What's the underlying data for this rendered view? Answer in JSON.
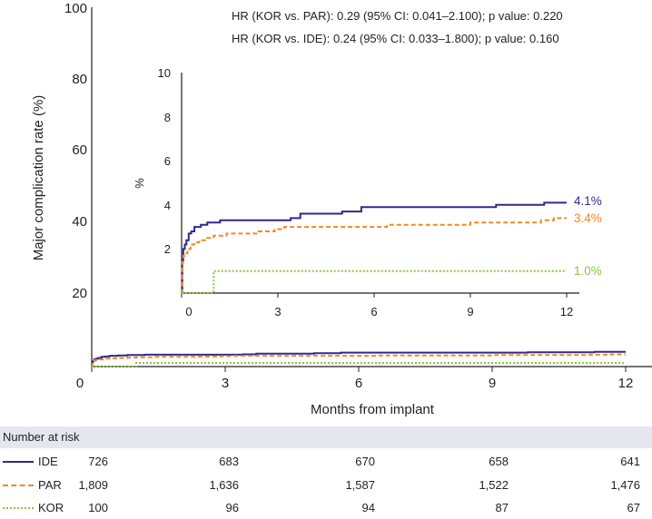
{
  "chart_data": {
    "type": "line",
    "subtype": "kaplan-meier step curves with inset",
    "xlabel": "Months from implant",
    "ylabel": "Major complication rate (%)",
    "x_ticks": [
      "0",
      "3",
      "6",
      "9",
      "12"
    ],
    "y_ticks": [
      "20",
      "40",
      "60",
      "80",
      "100"
    ],
    "xlim": [
      0,
      12
    ],
    "ylim": [
      0,
      100
    ],
    "annotations": [
      "HR (KOR vs. PAR): 0.29 (95% CI: 0.041–2.100); p value: 0.220",
      "HR (KOR vs. IDE): 0.24 (95% CI: 0.033–1.800); p value: 0.160"
    ],
    "series": [
      {
        "name": "IDE",
        "color": "#2e2a8f",
        "style": "solid",
        "end_label": "4.1%",
        "points": [
          [
            0,
            0
          ],
          [
            0.02,
            1.5
          ],
          [
            0.05,
            2.0
          ],
          [
            0.1,
            2.2
          ],
          [
            0.15,
            2.4
          ],
          [
            0.22,
            2.7
          ],
          [
            0.3,
            2.8
          ],
          [
            0.4,
            3.0
          ],
          [
            0.6,
            3.1
          ],
          [
            0.8,
            3.2
          ],
          [
            1.2,
            3.3
          ],
          [
            3.0,
            3.3
          ],
          [
            3.4,
            3.4
          ],
          [
            3.7,
            3.6
          ],
          [
            5.0,
            3.7
          ],
          [
            5.6,
            3.9
          ],
          [
            9.8,
            4.0
          ],
          [
            11.3,
            4.1
          ],
          [
            12,
            4.1
          ]
        ]
      },
      {
        "name": "PAR",
        "color": "#f08a24",
        "style": "dashed",
        "end_label": "3.4%",
        "points": [
          [
            0,
            0
          ],
          [
            0.02,
            1.4
          ],
          [
            0.05,
            1.7
          ],
          [
            0.1,
            1.8
          ],
          [
            0.18,
            2.0
          ],
          [
            0.28,
            2.2
          ],
          [
            0.4,
            2.3
          ],
          [
            0.55,
            2.4
          ],
          [
            0.8,
            2.5
          ],
          [
            1.0,
            2.6
          ],
          [
            1.4,
            2.7
          ],
          [
            2.4,
            2.8
          ],
          [
            2.9,
            2.9
          ],
          [
            3.2,
            3.0
          ],
          [
            6.0,
            3.0
          ],
          [
            6.4,
            3.1
          ],
          [
            7.5,
            3.1
          ],
          [
            9.0,
            3.2
          ],
          [
            11.2,
            3.3
          ],
          [
            11.6,
            3.4
          ],
          [
            12,
            3.4
          ]
        ]
      },
      {
        "name": "KOR",
        "color": "#8cc63f",
        "style": "dotted",
        "end_label": "1.0%",
        "points": [
          [
            0,
            0
          ],
          [
            1.0,
            0
          ],
          [
            1.0,
            1.0
          ],
          [
            12,
            1.0
          ]
        ]
      }
    ],
    "inset": {
      "ylabel": "%",
      "x_ticks": [
        "0",
        "3",
        "6",
        "9",
        "12"
      ],
      "y_ticks": [
        "2",
        "4",
        "6",
        "8",
        "10"
      ],
      "xlim": [
        0,
        12
      ],
      "ylim": [
        0,
        10
      ]
    },
    "risk_table": {
      "title": "Number at risk",
      "rows": [
        {
          "name": "IDE",
          "counts": [
            "726",
            "683",
            "670",
            "658",
            "641"
          ]
        },
        {
          "name": "PAR",
          "counts": [
            "1,809",
            "1,636",
            "1,587",
            "1,522",
            "1,476"
          ]
        },
        {
          "name": "KOR",
          "counts": [
            "100",
            "96",
            "94",
            "87",
            "67"
          ]
        }
      ]
    }
  }
}
